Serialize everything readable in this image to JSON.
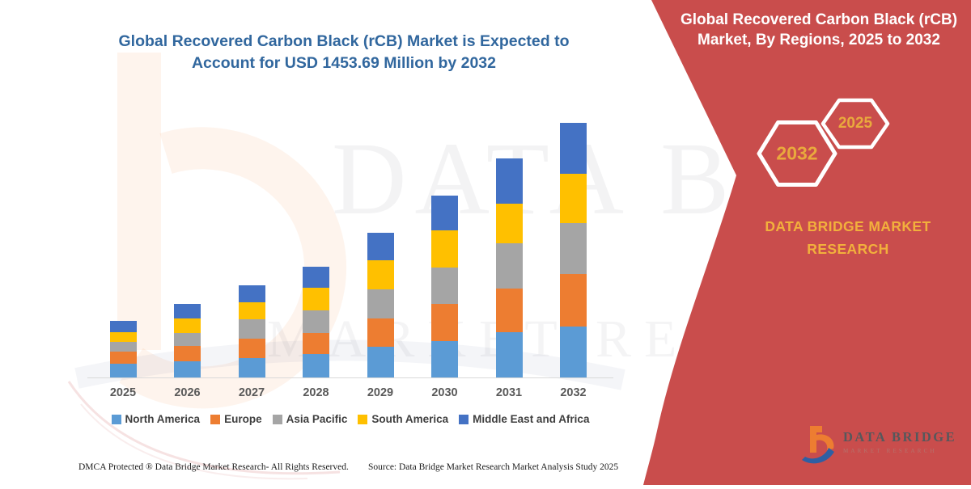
{
  "page": {
    "main_title": "Global Recovered Carbon Black (rCB) Market is Expected to Account for USD 1453.69 Million by 2032",
    "footer_left": "DMCA Protected ® Data Bridge Market Research-  All Rights Reserved.",
    "footer_source": "Source: Data Bridge Market Research  Market Analysis Study 2025",
    "watermark_line1": "DATA BRIDGE",
    "watermark_line2": "MARKET RESEARCH"
  },
  "panel": {
    "title": "Global Recovered Carbon Black (rCB) Market, By Regions, 2025 to 2032",
    "hexagon_year_end": "2032",
    "hexagon_year_start": "2025",
    "brand_text": "DATA BRIDGE MARKET RESEARCH",
    "logo_name": "DATA BRIDGE",
    "logo_subname": "MARKET RESEARCH",
    "bg_color": "#C94D4C",
    "accent_text_color": "#F2B03C"
  },
  "chart_data": {
    "type": "bar",
    "stacked": true,
    "title": "Global Recovered Carbon Black (rCB) Market, By Regions, 2025 to 2032",
    "unit": "USD Million (values estimated from bar heights; 2032 total labeled as 1453.69)",
    "categories": [
      "2025",
      "2026",
      "2027",
      "2028",
      "2029",
      "2030",
      "2031",
      "2032"
    ],
    "series": [
      {
        "name": "North America",
        "color": "#5B9BD5",
        "values": [
          77,
          92,
          112,
          135,
          174,
          210,
          257,
          292
        ]
      },
      {
        "name": "Europe",
        "color": "#ED7D31",
        "values": [
          69,
          88,
          111,
          121,
          165,
          212,
          251,
          300
        ]
      },
      {
        "name": "Asia Pacific",
        "color": "#A5A5A5",
        "values": [
          57,
          74,
          108,
          125,
          166,
          208,
          257,
          288
        ]
      },
      {
        "name": "South America",
        "color": "#FFC000",
        "values": [
          54,
          84,
          99,
          131,
          164,
          212,
          228,
          285
        ]
      },
      {
        "name": "Middle East and Africa",
        "color": "#4472C4",
        "values": [
          66,
          83,
          97,
          118,
          159,
          196,
          258,
          289
        ]
      }
    ],
    "totals": [
      323,
      421,
      527,
      630,
      828,
      1038,
      1251,
      1453.69
    ],
    "highlight_value": "USD 1453.69 Million by 2032",
    "legend_position": "bottom",
    "grid": false,
    "y_axis_visible": false,
    "x_axis_line_color": "#D9D9D9"
  }
}
